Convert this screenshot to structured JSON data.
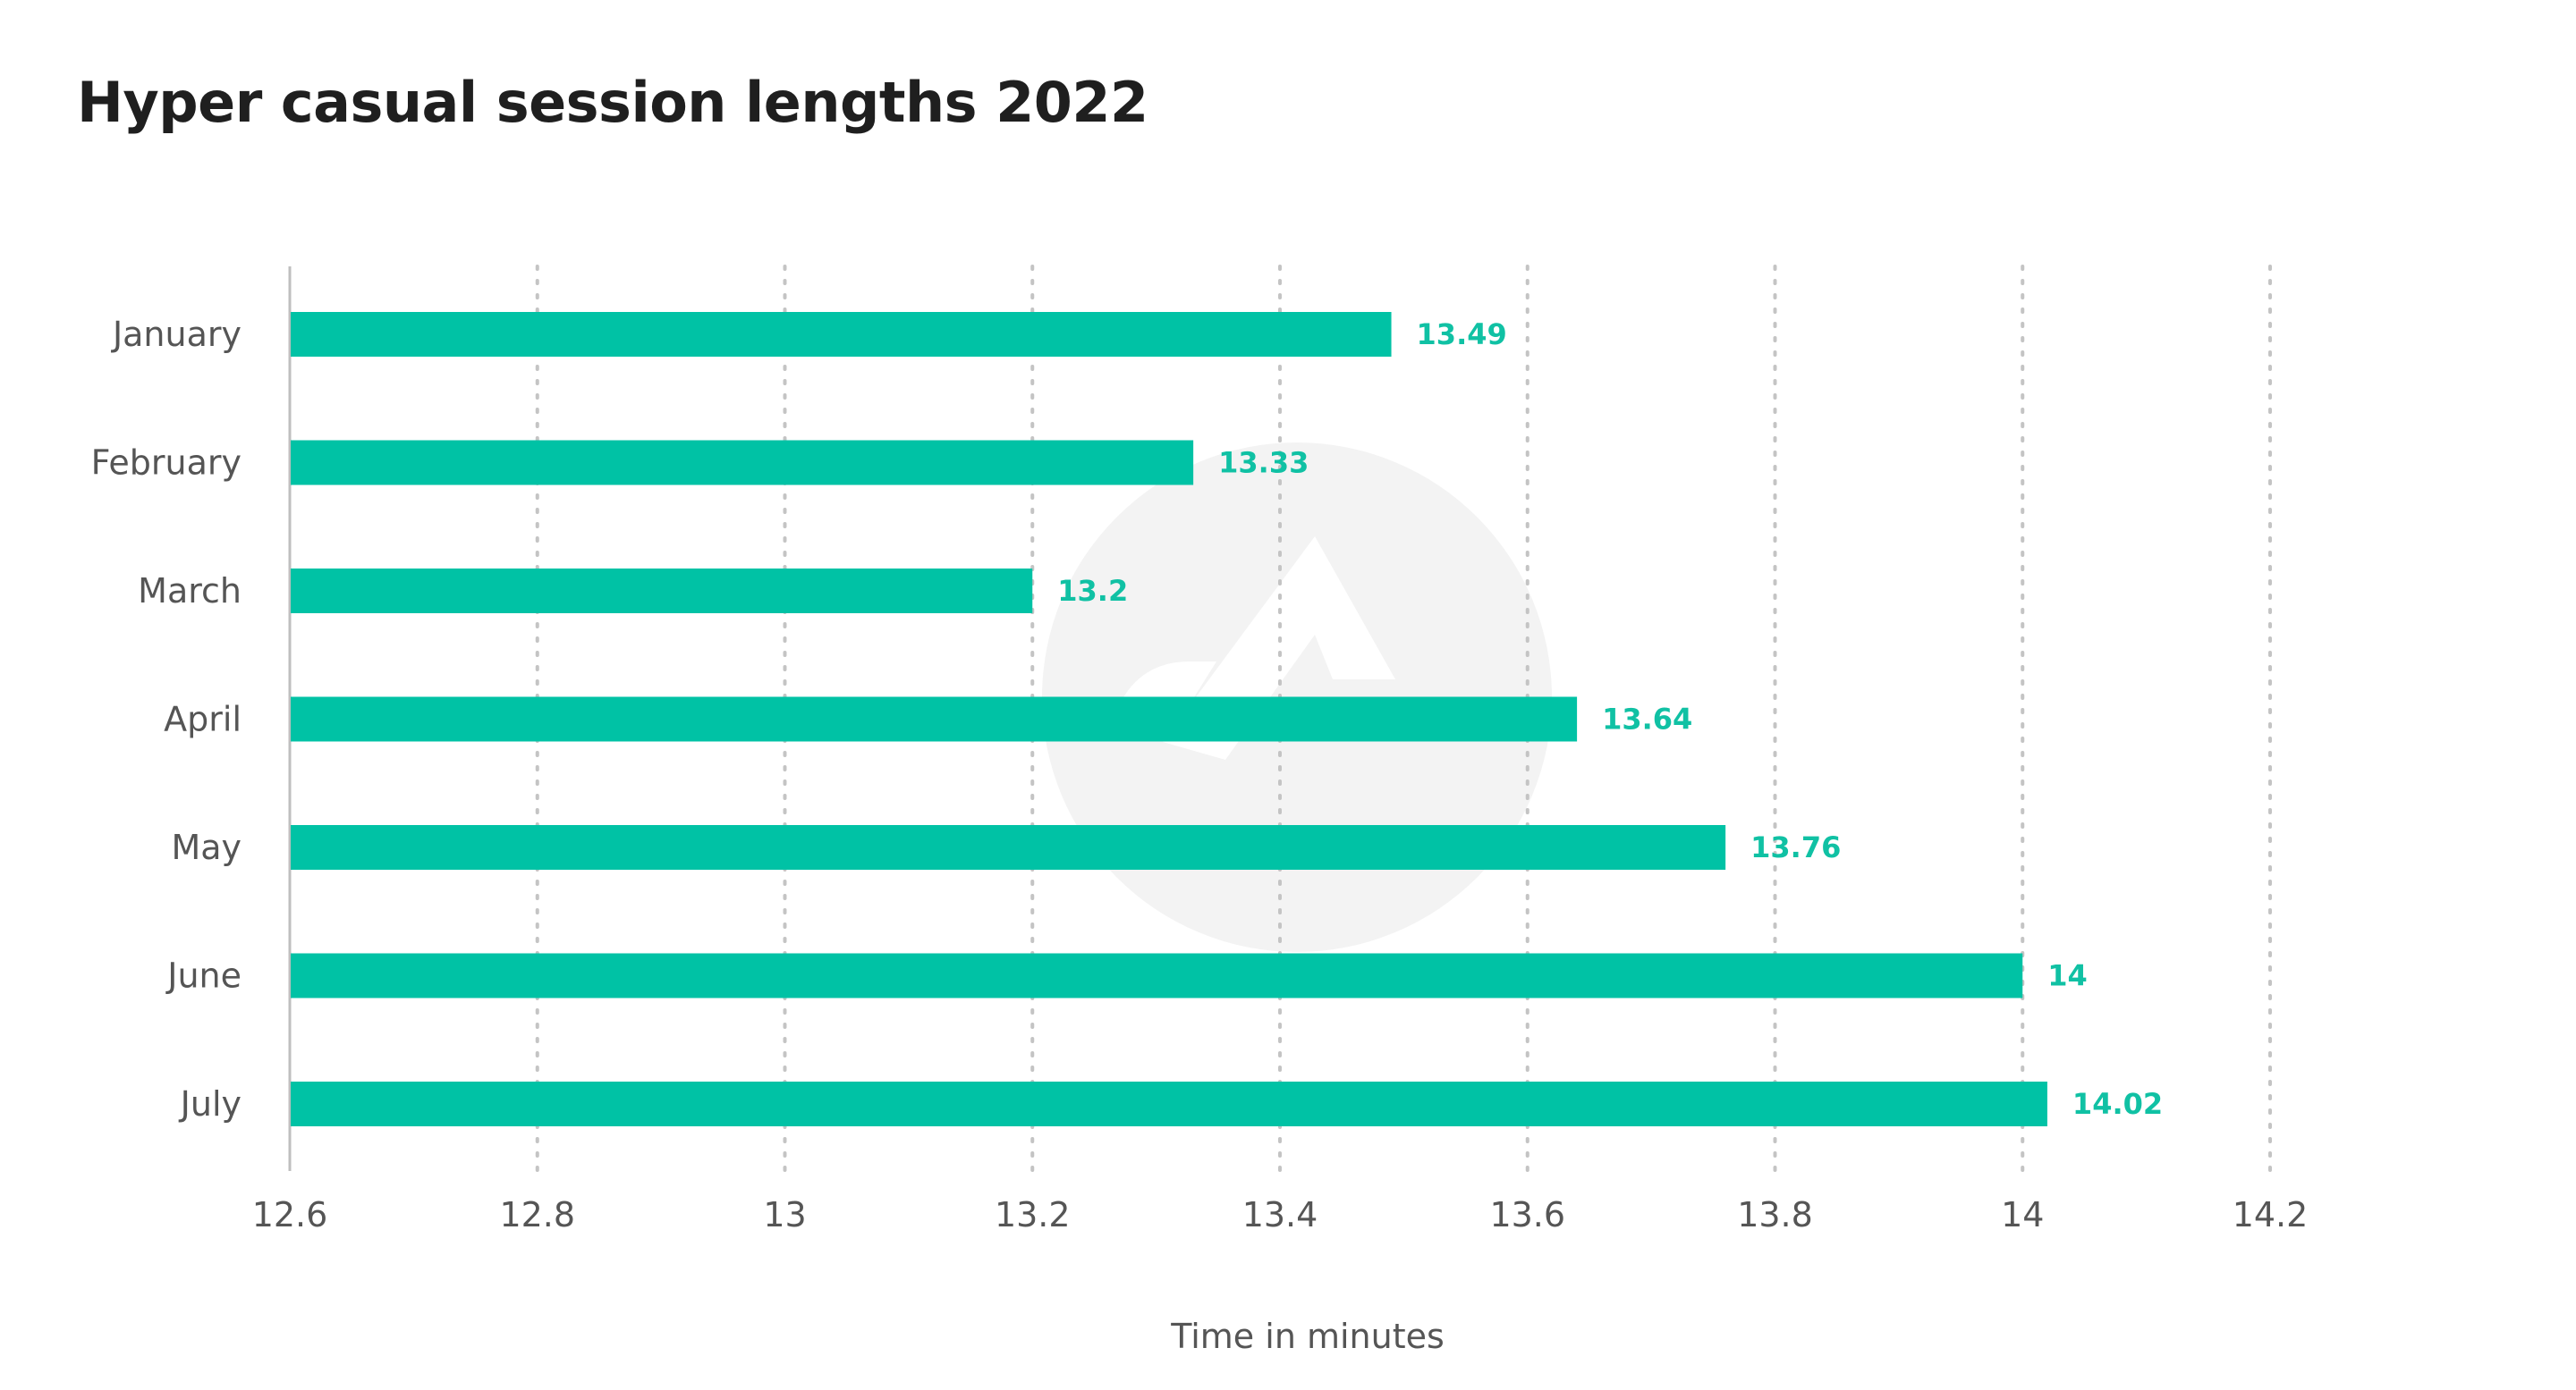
{
  "chart_data": {
    "type": "bar",
    "orientation": "horizontal",
    "title": "Hyper casual session lengths 2022",
    "xlabel": "Time in minutes",
    "ylabel": "",
    "categories": [
      "January",
      "February",
      "March",
      "April",
      "May",
      "June",
      "July"
    ],
    "values": [
      13.49,
      13.33,
      13.2,
      13.64,
      13.76,
      14,
      14.02
    ],
    "value_labels": [
      "13.49",
      "13.33",
      "13.2",
      "13.64",
      "13.76",
      "14",
      "14.02"
    ],
    "xlim": [
      12.6,
      14.2
    ],
    "xticks": [
      "12.6",
      "12.8",
      "13",
      "13.2",
      "13.4",
      "13.6",
      "13.8",
      "14",
      "14.2"
    ],
    "grid": "vertical dotted",
    "bar_color": "#00c2a5",
    "label_color": "#10c1a4"
  }
}
